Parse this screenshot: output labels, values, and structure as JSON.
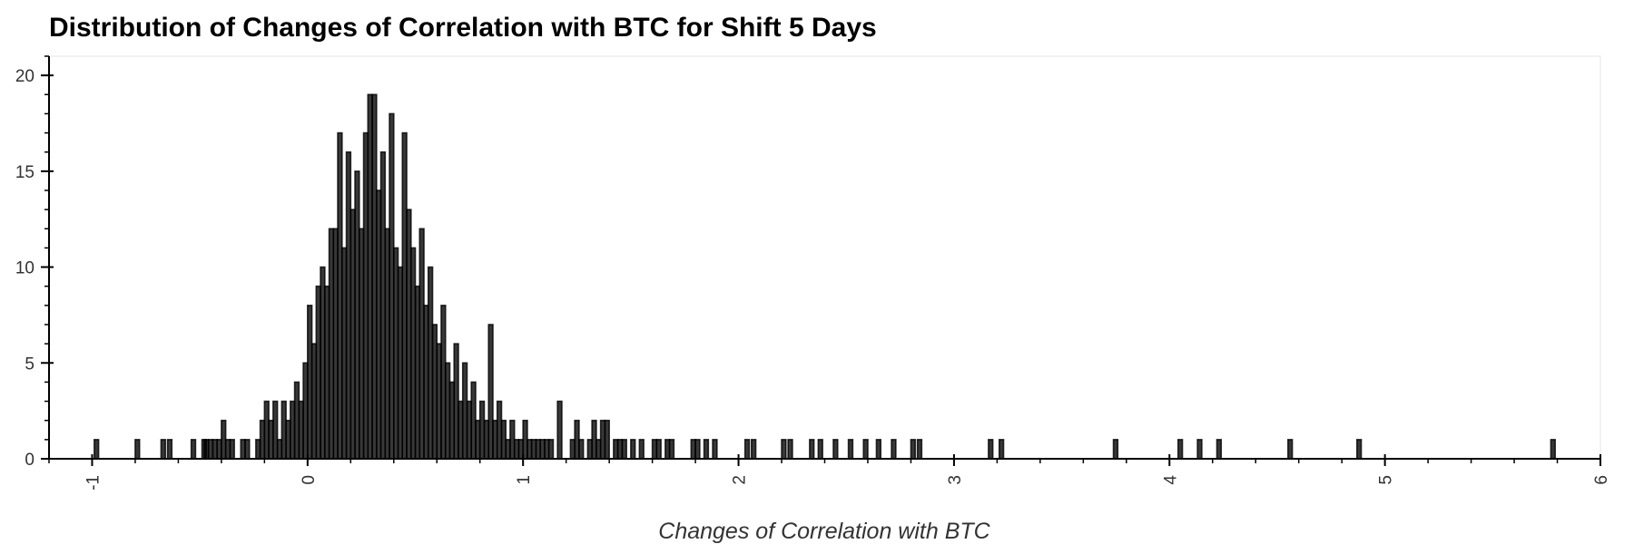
{
  "chart_data": {
    "type": "bar",
    "title": "Distribution of Changes of Correlation with BTC for Shift 5 Days",
    "xlabel": "Changes of Correlation with BTC",
    "ylabel": "",
    "xlim": [
      -1.2,
      6.0
    ],
    "ylim": [
      0,
      21
    ],
    "x_ticks": [
      -1,
      0,
      1,
      2,
      3,
      4,
      5,
      6
    ],
    "y_ticks": [
      0,
      5,
      10,
      15,
      20
    ],
    "grid": false,
    "bin_width": 0.02,
    "bar_color": "#000000",
    "bars": [
      {
        "x": -0.99,
        "count": 1
      },
      {
        "x": -0.8,
        "count": 1
      },
      {
        "x": -0.68,
        "count": 1
      },
      {
        "x": -0.65,
        "count": 1
      },
      {
        "x": -0.54,
        "count": 1
      },
      {
        "x": -0.49,
        "count": 1
      },
      {
        "x": -0.48,
        "count": 1
      },
      {
        "x": -0.46,
        "count": 1
      },
      {
        "x": -0.44,
        "count": 1
      },
      {
        "x": -0.42,
        "count": 1
      },
      {
        "x": -0.4,
        "count": 2
      },
      {
        "x": -0.38,
        "count": 1
      },
      {
        "x": -0.36,
        "count": 1
      },
      {
        "x": -0.31,
        "count": 1
      },
      {
        "x": -0.29,
        "count": 1
      },
      {
        "x": -0.24,
        "count": 1
      },
      {
        "x": -0.22,
        "count": 2
      },
      {
        "x": -0.2,
        "count": 3
      },
      {
        "x": -0.18,
        "count": 2
      },
      {
        "x": -0.16,
        "count": 3
      },
      {
        "x": -0.14,
        "count": 1
      },
      {
        "x": -0.12,
        "count": 3
      },
      {
        "x": -0.1,
        "count": 2
      },
      {
        "x": -0.08,
        "count": 3
      },
      {
        "x": -0.06,
        "count": 4
      },
      {
        "x": -0.04,
        "count": 3
      },
      {
        "x": -0.02,
        "count": 5
      },
      {
        "x": 0.0,
        "count": 8
      },
      {
        "x": 0.02,
        "count": 6
      },
      {
        "x": 0.04,
        "count": 9
      },
      {
        "x": 0.06,
        "count": 10
      },
      {
        "x": 0.08,
        "count": 9
      },
      {
        "x": 0.1,
        "count": 12
      },
      {
        "x": 0.12,
        "count": 12
      },
      {
        "x": 0.14,
        "count": 17
      },
      {
        "x": 0.16,
        "count": 11
      },
      {
        "x": 0.18,
        "count": 16
      },
      {
        "x": 0.2,
        "count": 13
      },
      {
        "x": 0.22,
        "count": 15
      },
      {
        "x": 0.24,
        "count": 12
      },
      {
        "x": 0.26,
        "count": 17
      },
      {
        "x": 0.28,
        "count": 19
      },
      {
        "x": 0.3,
        "count": 19
      },
      {
        "x": 0.32,
        "count": 14
      },
      {
        "x": 0.34,
        "count": 16
      },
      {
        "x": 0.36,
        "count": 12
      },
      {
        "x": 0.38,
        "count": 18
      },
      {
        "x": 0.4,
        "count": 11
      },
      {
        "x": 0.42,
        "count": 10
      },
      {
        "x": 0.44,
        "count": 17
      },
      {
        "x": 0.46,
        "count": 13
      },
      {
        "x": 0.48,
        "count": 11
      },
      {
        "x": 0.5,
        "count": 9
      },
      {
        "x": 0.52,
        "count": 12
      },
      {
        "x": 0.54,
        "count": 8
      },
      {
        "x": 0.56,
        "count": 10
      },
      {
        "x": 0.58,
        "count": 7
      },
      {
        "x": 0.6,
        "count": 6
      },
      {
        "x": 0.62,
        "count": 8
      },
      {
        "x": 0.64,
        "count": 5
      },
      {
        "x": 0.66,
        "count": 4
      },
      {
        "x": 0.68,
        "count": 6
      },
      {
        "x": 0.7,
        "count": 3
      },
      {
        "x": 0.72,
        "count": 5
      },
      {
        "x": 0.74,
        "count": 3
      },
      {
        "x": 0.76,
        "count": 4
      },
      {
        "x": 0.78,
        "count": 2
      },
      {
        "x": 0.8,
        "count": 3
      },
      {
        "x": 0.82,
        "count": 2
      },
      {
        "x": 0.84,
        "count": 7
      },
      {
        "x": 0.86,
        "count": 2
      },
      {
        "x": 0.88,
        "count": 3
      },
      {
        "x": 0.9,
        "count": 2
      },
      {
        "x": 0.92,
        "count": 1
      },
      {
        "x": 0.94,
        "count": 2
      },
      {
        "x": 0.96,
        "count": 1
      },
      {
        "x": 0.98,
        "count": 1
      },
      {
        "x": 1.0,
        "count": 2
      },
      {
        "x": 1.02,
        "count": 1
      },
      {
        "x": 1.04,
        "count": 1
      },
      {
        "x": 1.06,
        "count": 1
      },
      {
        "x": 1.08,
        "count": 1
      },
      {
        "x": 1.1,
        "count": 1
      },
      {
        "x": 1.12,
        "count": 1
      },
      {
        "x": 1.16,
        "count": 3
      },
      {
        "x": 1.22,
        "count": 1
      },
      {
        "x": 1.24,
        "count": 2
      },
      {
        "x": 1.26,
        "count": 1
      },
      {
        "x": 1.3,
        "count": 1
      },
      {
        "x": 1.32,
        "count": 2
      },
      {
        "x": 1.34,
        "count": 1
      },
      {
        "x": 1.36,
        "count": 2
      },
      {
        "x": 1.38,
        "count": 2
      },
      {
        "x": 1.42,
        "count": 1
      },
      {
        "x": 1.44,
        "count": 1
      },
      {
        "x": 1.46,
        "count": 1
      },
      {
        "x": 1.5,
        "count": 1
      },
      {
        "x": 1.54,
        "count": 1
      },
      {
        "x": 1.6,
        "count": 1
      },
      {
        "x": 1.62,
        "count": 1
      },
      {
        "x": 1.66,
        "count": 1
      },
      {
        "x": 1.68,
        "count": 1
      },
      {
        "x": 1.78,
        "count": 1
      },
      {
        "x": 1.8,
        "count": 1
      },
      {
        "x": 1.84,
        "count": 1
      },
      {
        "x": 1.88,
        "count": 1
      },
      {
        "x": 2.03,
        "count": 1
      },
      {
        "x": 2.06,
        "count": 1
      },
      {
        "x": 2.2,
        "count": 1
      },
      {
        "x": 2.23,
        "count": 1
      },
      {
        "x": 2.33,
        "count": 1
      },
      {
        "x": 2.37,
        "count": 1
      },
      {
        "x": 2.44,
        "count": 1
      },
      {
        "x": 2.51,
        "count": 1
      },
      {
        "x": 2.58,
        "count": 1
      },
      {
        "x": 2.64,
        "count": 1
      },
      {
        "x": 2.71,
        "count": 1
      },
      {
        "x": 2.8,
        "count": 1
      },
      {
        "x": 2.83,
        "count": 1
      },
      {
        "x": 3.16,
        "count": 1
      },
      {
        "x": 3.21,
        "count": 1
      },
      {
        "x": 3.74,
        "count": 1
      },
      {
        "x": 4.04,
        "count": 1
      },
      {
        "x": 4.13,
        "count": 1
      },
      {
        "x": 4.22,
        "count": 1
      },
      {
        "x": 4.55,
        "count": 1
      },
      {
        "x": 4.87,
        "count": 1
      },
      {
        "x": 5.77,
        "count": 1
      }
    ]
  }
}
